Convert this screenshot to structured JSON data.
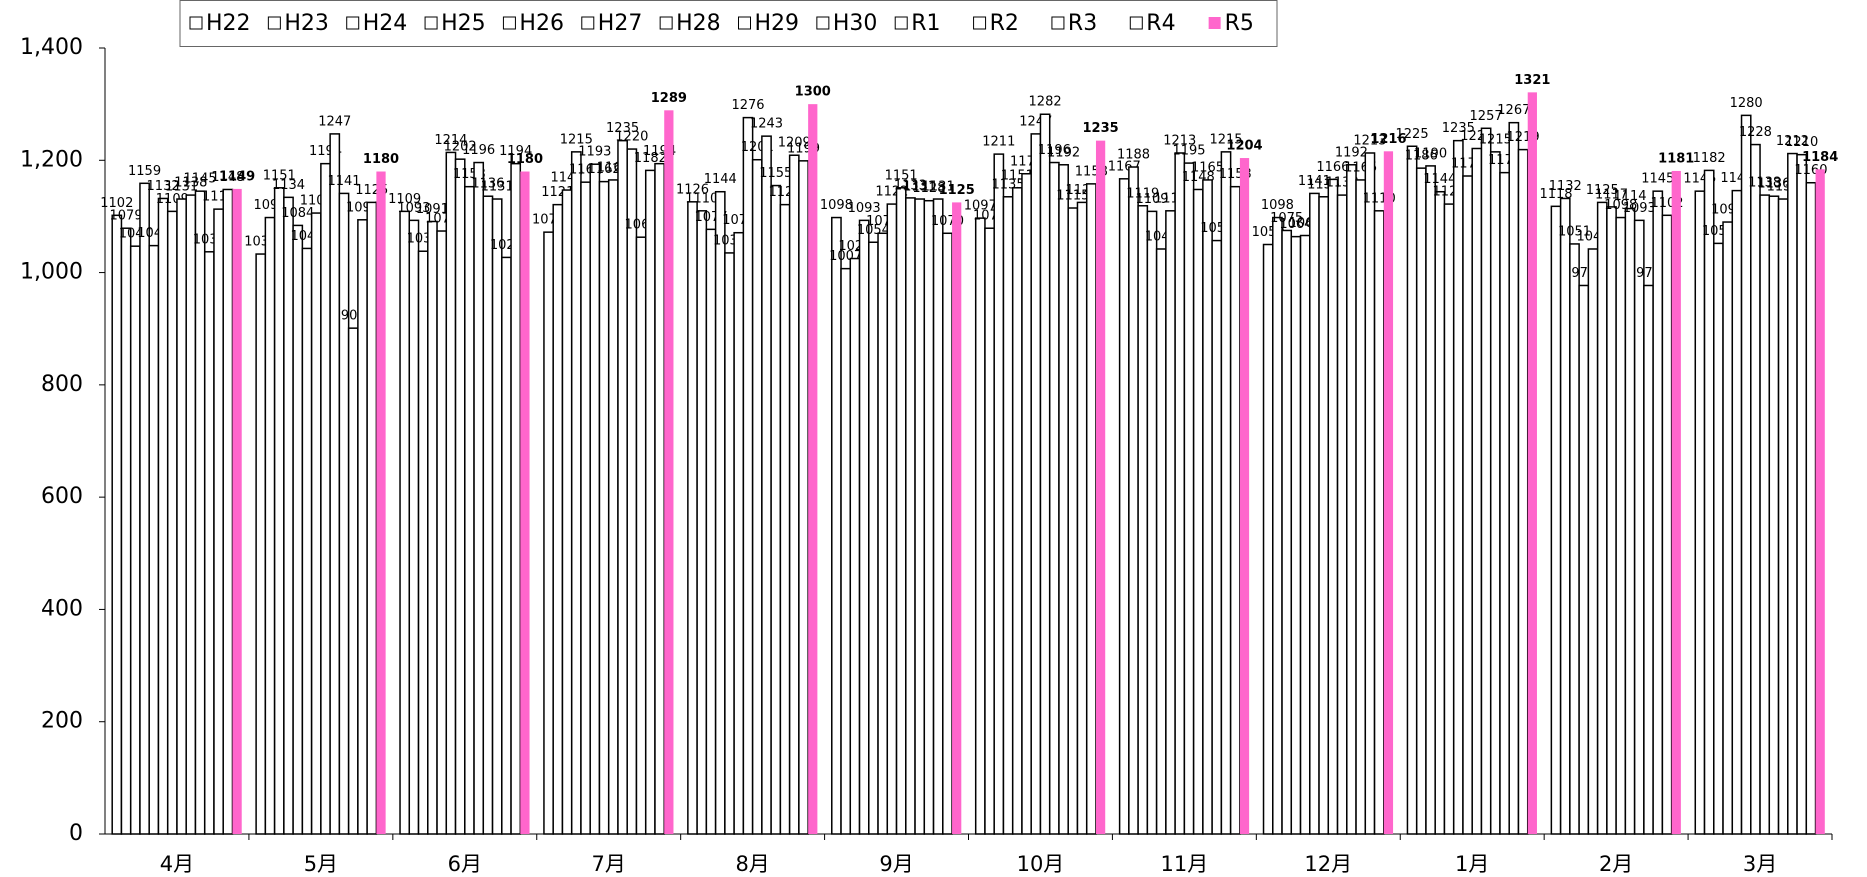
{
  "chart_data": {
    "type": "bar",
    "categories": [
      "4月",
      "5月",
      "6月",
      "7月",
      "8月",
      "9月",
      "10月",
      "11月",
      "12月",
      "1月",
      "2月",
      "3月"
    ],
    "ylim": [
      0,
      1400
    ],
    "yticks": [
      0,
      200,
      400,
      600,
      800,
      {
        "value": 1000,
        "label": "1,000"
      },
      {
        "value": 1200,
        "label": "1,200"
      },
      {
        "value": 1400,
        "label": "1,400"
      }
    ],
    "legend": "top",
    "series": [
      {
        "name": "H22",
        "color": "#ffffff",
        "values": [
          1102,
          1033,
          1109,
          1072,
          1126,
          1098,
          1097,
          1167,
          1050,
          1225,
          1118,
          1145
        ]
      },
      {
        "name": "H23",
        "color": "#ffffff",
        "values": [
          1079,
          1098,
          1093,
          1121,
          1110,
          1007,
          1079,
          1188,
          1098,
          1186,
          1132,
          1182
        ]
      },
      {
        "name": "H24",
        "color": "#ffffff",
        "values": [
          1047,
          1151,
          1038,
          1147,
          1077,
          1025,
          1211,
          1119,
          1075,
          1190,
          1051,
          1052
        ]
      },
      {
        "name": "H25",
        "color": "#ffffff",
        "values": [
          1159,
          1134,
          1091,
          1215,
          1144,
          1093,
          1135,
          1109,
          1064,
          1144,
          977,
          1090
        ]
      },
      {
        "name": "H26",
        "color": "#ffffff",
        "values": [
          1048,
          1084,
          1074,
          1161,
          1035,
          1054,
          1151,
          1042,
          1066,
          1122,
          1042,
          1146
        ]
      },
      {
        "name": "H27",
        "color": "#ffffff",
        "values": [
          1132,
          1043,
          1214,
          1193,
          1071,
          1070,
          1176,
          1110,
          1141,
          1235,
          1125,
          1280
        ]
      },
      {
        "name": "H28",
        "color": "#ffffff",
        "values": [
          1109,
          1106,
          1202,
          1162,
          1276,
          1122,
          1247,
          1213,
          1135,
          1172,
          1117,
          1228
        ]
      },
      {
        "name": "H29",
        "color": "#ffffff",
        "values": [
          1131,
          1194,
          1153,
          1165,
          1201,
          1151,
          1282,
          1195,
          1166,
          1221,
          1098,
          1138
        ]
      },
      {
        "name": "H30",
        "color": "#ffffff",
        "values": [
          1138,
          1247,
          1196,
          1235,
          1243,
          1133,
          1196,
          1148,
          1138,
          1257,
          1114,
          1136
        ]
      },
      {
        "name": "R1",
        "color": "#ffffff",
        "values": [
          1145,
          1141,
          1136,
          1220,
          1155,
          1131,
          1192,
          1165,
          1192,
          1215,
          1093,
          1131
        ]
      },
      {
        "name": "R2",
        "color": "#ffffff",
        "values": [
          1037,
          901,
          1131,
          1063,
          1121,
          1128,
          1115,
          1057,
          1165,
          1178,
          977,
          1212
        ]
      },
      {
        "name": "R3",
        "color": "#ffffff",
        "values": [
          1113,
          1094,
          1027,
          1182,
          1209,
          1131,
          1125,
          1215,
          1213,
          1267,
          1145,
          1210
        ]
      },
      {
        "name": "R4",
        "color": "#ffffff",
        "values": [
          1148,
          1125,
          1194,
          1194,
          1199,
          1070,
          1158,
          1153,
          1110,
          1219,
          1102,
          1160
        ]
      },
      {
        "name": "R5",
        "color": "#ff66cc",
        "values": [
          1149,
          1180,
          1180,
          1289,
          1300,
          1125,
          1235,
          1204,
          1216,
          1321,
          1181,
          1184
        ]
      }
    ]
  }
}
